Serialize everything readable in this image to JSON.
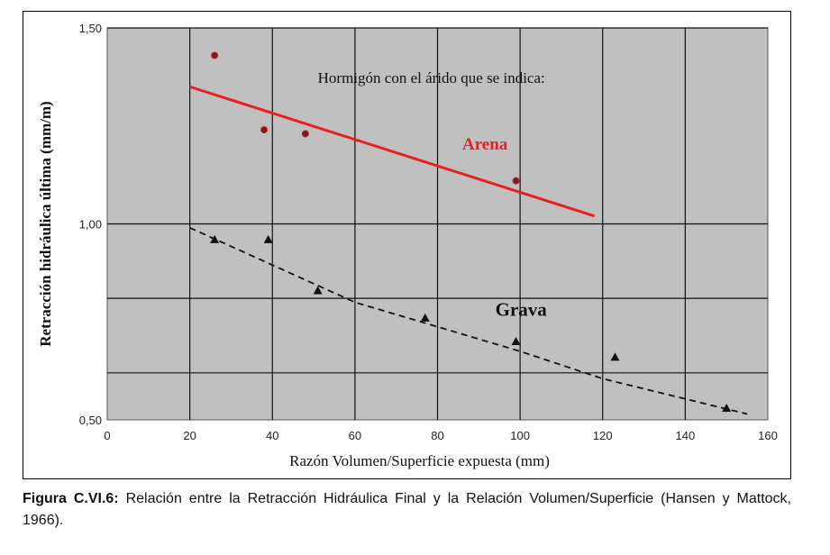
{
  "chart_data": {
    "type": "scatter",
    "title": "",
    "xlabel": "Razón Volumen/Superficie expuesta (mm)",
    "ylabel": "Retracción hidráulica última (mm/m)",
    "xlim": [
      0,
      160
    ],
    "ylim": [
      0.5,
      1.5
    ],
    "x_ticks": [
      0,
      20,
      40,
      60,
      80,
      100,
      120,
      140,
      160
    ],
    "x_tick_labels": [
      "0",
      "20",
      "40",
      "60",
      "80",
      "100",
      "120",
      "140",
      "160"
    ],
    "y_ticks": [
      0.5,
      1.0,
      1.5
    ],
    "y_tick_labels": [
      "0,50",
      "1,00",
      "1,50"
    ],
    "horizontal_gridlines": [
      0.62,
      0.81,
      1.0,
      1.5
    ],
    "vertical_gridlines": [
      20,
      40,
      60,
      80,
      100,
      120,
      140
    ],
    "grid": true,
    "background": "#c0c0c0",
    "annotation": "Hormigón con el árido que se indica:",
    "series": [
      {
        "name": "Arena",
        "color": "#e82020",
        "marker": "circle",
        "points": [
          {
            "x": 26,
            "y": 1.43
          },
          {
            "x": 38,
            "y": 1.24
          },
          {
            "x": 48,
            "y": 1.23
          },
          {
            "x": 99,
            "y": 1.11
          }
        ],
        "trend": {
          "style": "solid",
          "from": {
            "x": 20,
            "y": 1.35
          },
          "to": {
            "x": 118,
            "y": 1.02
          }
        }
      },
      {
        "name": "Grava",
        "color": "#111111",
        "marker": "triangle",
        "points": [
          {
            "x": 26,
            "y": 0.96
          },
          {
            "x": 39,
            "y": 0.96
          },
          {
            "x": 51,
            "y": 0.83
          },
          {
            "x": 77,
            "y": 0.76
          },
          {
            "x": 99,
            "y": 0.7
          },
          {
            "x": 123,
            "y": 0.66
          },
          {
            "x": 150,
            "y": 0.53
          }
        ],
        "trend": {
          "style": "dashed",
          "points": [
            {
              "x": 20,
              "y": 0.99
            },
            {
              "x": 60,
              "y": 0.8
            },
            {
              "x": 100,
              "y": 0.675
            },
            {
              "x": 120,
              "y": 0.605
            },
            {
              "x": 155,
              "y": 0.515
            }
          ]
        }
      }
    ]
  },
  "caption": {
    "label": "Figura C.VI.6:",
    "text": " Relación entre la Retracción Hidráulica Final y la Relación Volumen/Superficie (Hansen y Mattock, 1966)."
  }
}
